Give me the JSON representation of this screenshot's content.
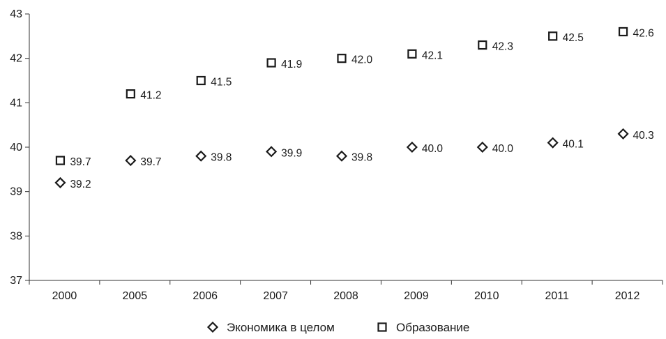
{
  "chart_data": {
    "type": "scatter",
    "categories": [
      "2000",
      "2005",
      "2006",
      "2007",
      "2008",
      "2009",
      "2010",
      "2011",
      "2012"
    ],
    "ylim": [
      37,
      43
    ],
    "yticks": [
      "37",
      "38",
      "39",
      "40",
      "41",
      "42",
      "43"
    ],
    "grid": false,
    "legend_position": "bottom",
    "series": [
      {
        "name": "Экономика в целом",
        "marker": "diamond",
        "values": [
          39.2,
          39.7,
          39.8,
          39.9,
          39.8,
          40.0,
          40.0,
          40.1,
          40.3
        ],
        "labels": [
          "39.2",
          "39.7",
          "39.8",
          "39.9",
          "39.8",
          "40.0",
          "40.0",
          "40.1",
          "40.3"
        ]
      },
      {
        "name": "Образование",
        "marker": "square",
        "values": [
          39.7,
          41.2,
          41.5,
          41.9,
          42.0,
          42.1,
          42.3,
          42.5,
          42.6
        ],
        "labels": [
          "39.7",
          "41.2",
          "41.5",
          "41.9",
          "42.0",
          "42.1",
          "42.3",
          "42.5",
          "42.6"
        ]
      }
    ],
    "colors": {
      "marker": "#1a1a1a",
      "axis": "#333333"
    }
  }
}
